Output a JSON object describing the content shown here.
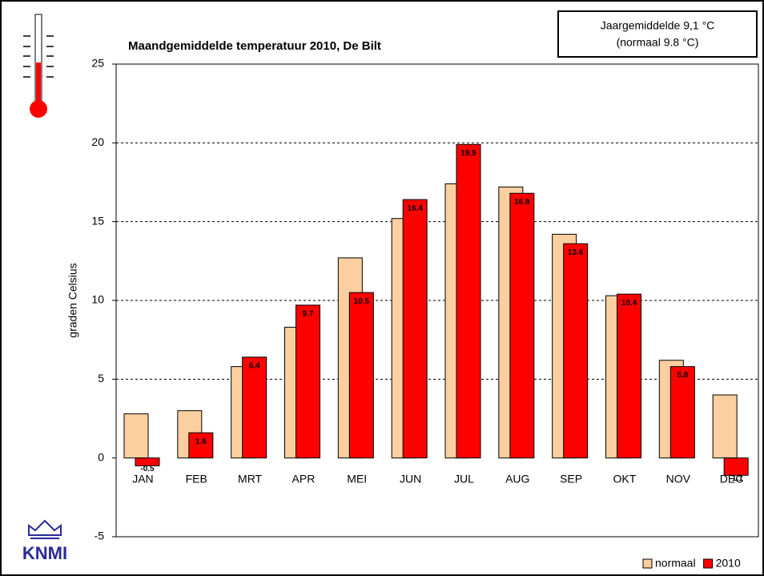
{
  "chart_data": {
    "type": "bar",
    "title": "Maandgemiddelde temperatuur 2010, De Bilt",
    "annotation": [
      "Jaargemiddelde 9,1 °C",
      "(normaal 9.8 °C)"
    ],
    "ylabel": "graden Celsius",
    "logo": "KNMI",
    "categories": [
      "JAN",
      "FEB",
      "MRT",
      "APR",
      "MEI",
      "JUN",
      "JUL",
      "AUG",
      "SEP",
      "OKT",
      "NOV",
      "DEC"
    ],
    "series": [
      {
        "name": "normaal",
        "color": "#fbcf9f",
        "values": [
          2.8,
          3.0,
          5.8,
          8.3,
          12.7,
          15.2,
          17.4,
          17.2,
          14.2,
          10.3,
          6.2,
          4.0
        ]
      },
      {
        "name": "2010",
        "color": "#ff0000",
        "values": [
          -0.5,
          1.6,
          6.4,
          9.7,
          10.5,
          16.4,
          19.9,
          16.8,
          13.6,
          10.4,
          5.8,
          -1.1
        ]
      }
    ],
    "ylim": [
      -5,
      25
    ],
    "yticks": [
      -5,
      0,
      5,
      10,
      15,
      20,
      25
    ],
    "grid": true
  }
}
